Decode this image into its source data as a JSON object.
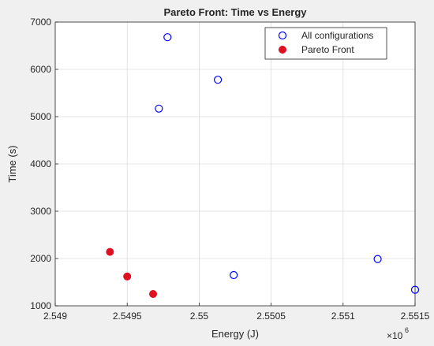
{
  "chart_data": {
    "type": "scatter",
    "title": "Pareto Front: Time vs Energy",
    "xlabel": "Energy (J)",
    "ylabel": "Time (s)",
    "x_exponent_label": "×10",
    "x_exponent_power": "6",
    "xlim": [
      2.549,
      2.5515
    ],
    "ylim": [
      1000,
      7000
    ],
    "xticks": [
      2.549,
      2.5495,
      2.55,
      2.5505,
      2.551,
      2.5515
    ],
    "xtick_labels": [
      "2.549",
      "2.5495",
      "2.55",
      "2.5505",
      "2.551",
      "2.5515"
    ],
    "yticks": [
      1000,
      2000,
      3000,
      4000,
      5000,
      6000,
      7000
    ],
    "ytick_labels": [
      "1000",
      "2000",
      "3000",
      "4000",
      "5000",
      "6000",
      "7000"
    ],
    "grid": true,
    "legend_position": "top-right",
    "series": [
      {
        "name": "All configurations",
        "marker": "open-circle",
        "color": "#0000ff",
        "points": [
          {
            "x": 2.54978,
            "y": 6680
          },
          {
            "x": 2.55013,
            "y": 5780
          },
          {
            "x": 2.54972,
            "y": 5170
          },
          {
            "x": 2.55024,
            "y": 1650
          },
          {
            "x": 2.55124,
            "y": 1990
          },
          {
            "x": 2.5515,
            "y": 1340
          }
        ]
      },
      {
        "name": "Pareto Front",
        "marker": "filled-circle",
        "color": "#e01020",
        "points": [
          {
            "x": 2.54938,
            "y": 2140
          },
          {
            "x": 2.5495,
            "y": 1620
          },
          {
            "x": 2.54968,
            "y": 1250
          }
        ]
      }
    ]
  }
}
